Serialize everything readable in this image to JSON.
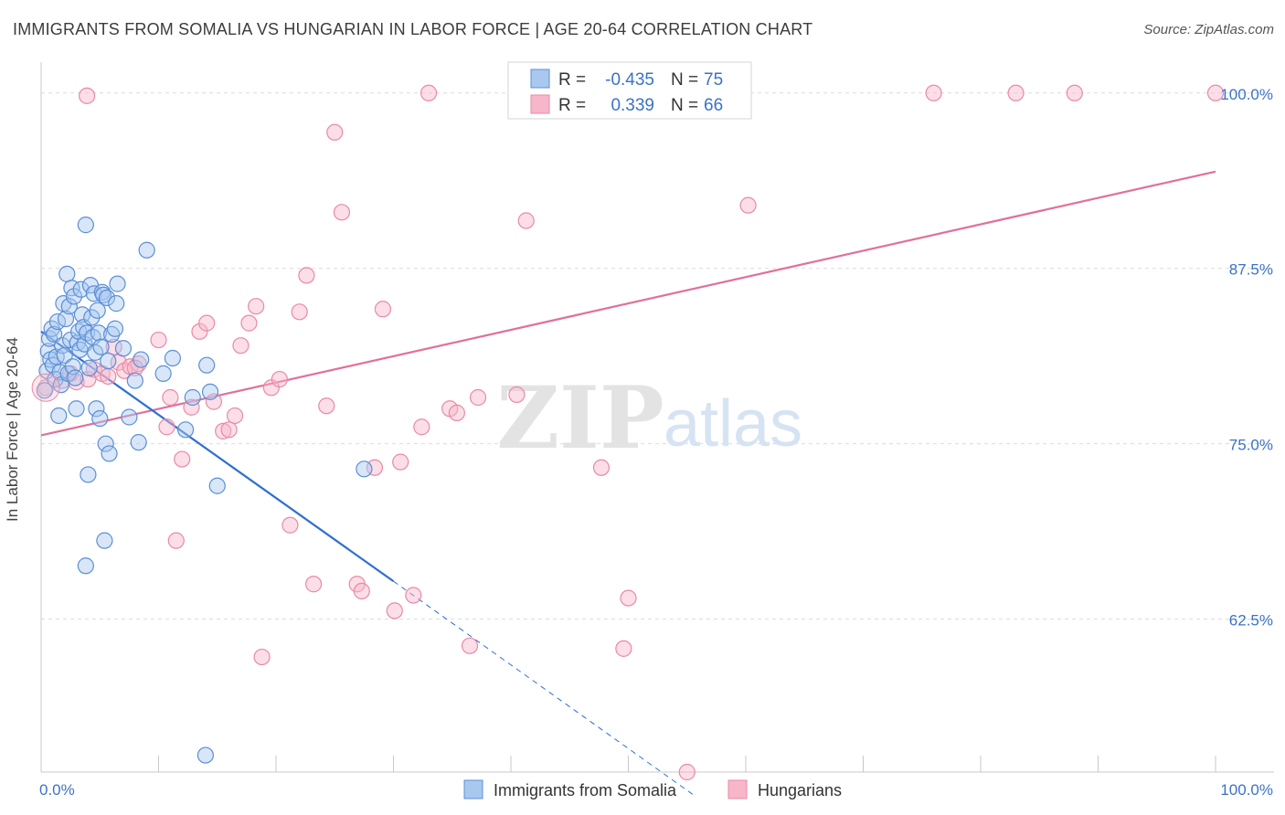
{
  "title": "IMMIGRANTS FROM SOMALIA VS HUNGARIAN IN LABOR FORCE | AGE 20-64 CORRELATION CHART",
  "source_prefix": "Source: ",
  "source_name": "ZipAtlas.com",
  "watermark": {
    "zip": "ZIP",
    "atlas": "atlas"
  },
  "colors": {
    "blue_fill": "#a8c8f0",
    "blue_stroke": "#5b8fd6",
    "blue_line": "#2e6fd0",
    "pink_fill": "#f7b6c9",
    "pink_stroke": "#e88aa6",
    "pink_line": "#e0709a",
    "tick_label": "#3a72c8",
    "grid": "#dcdcdc"
  },
  "legend_top": {
    "rows": [
      {
        "r_label": "R =",
        "r_value": "-0.435",
        "n_label": "N =",
        "n_value": "75"
      },
      {
        "r_label": "R =",
        "r_value": "0.339",
        "n_label": "N =",
        "n_value": "66"
      }
    ]
  },
  "legend_bottom": [
    "Immigrants from Somalia",
    "Hungarians"
  ],
  "chart_data": {
    "type": "scatter",
    "title": "IMMIGRANTS FROM SOMALIA VS HUNGARIAN IN LABOR FORCE | AGE 20-64 CORRELATION CHART",
    "xlabel": "",
    "ylabel": "In Labor Force | Age 20-64",
    "xlim": [
      0,
      100
    ],
    "ylim": [
      51.6,
      102.2
    ],
    "x_tick_labels": [
      "0.0%",
      "100.0%"
    ],
    "y_ticks": [
      62.5,
      75.0,
      87.5,
      100.0
    ],
    "y_tick_labels": [
      "62.5%",
      "75.0%",
      "87.5%",
      "100.0%"
    ],
    "grid": true,
    "series": [
      {
        "name": "Immigrants from Somalia",
        "r": -0.435,
        "n": 75,
        "trend": {
          "x0": 0,
          "y0": 83.0,
          "x1": 30,
          "y1": 65.2,
          "dash_x1": 55.5,
          "dash_y1": 50.0
        },
        "points": [
          [
            0.3,
            78.8
          ],
          [
            0.5,
            80.2
          ],
          [
            0.6,
            81.6
          ],
          [
            0.7,
            82.5
          ],
          [
            0.8,
            81.0
          ],
          [
            0.9,
            83.2
          ],
          [
            1.0,
            80.6
          ],
          [
            1.1,
            82.8
          ],
          [
            1.2,
            79.6
          ],
          [
            1.3,
            81.2
          ],
          [
            1.4,
            83.7
          ],
          [
            1.5,
            77.0
          ],
          [
            1.6,
            80.1
          ],
          [
            1.7,
            79.2
          ],
          [
            1.8,
            82.0
          ],
          [
            1.9,
            85.0
          ],
          [
            2.0,
            81.3
          ],
          [
            2.1,
            83.9
          ],
          [
            2.2,
            87.1
          ],
          [
            2.3,
            80.0
          ],
          [
            2.4,
            84.8
          ],
          [
            2.5,
            82.4
          ],
          [
            2.6,
            86.1
          ],
          [
            2.7,
            80.5
          ],
          [
            2.8,
            85.5
          ],
          [
            2.9,
            79.7
          ],
          [
            3.0,
            77.5
          ],
          [
            3.1,
            82.2
          ],
          [
            3.2,
            83.0
          ],
          [
            3.3,
            81.7
          ],
          [
            3.4,
            86.0
          ],
          [
            3.5,
            84.2
          ],
          [
            3.6,
            83.3
          ],
          [
            3.7,
            82.1
          ],
          [
            3.8,
            90.6
          ],
          [
            3.9,
            82.9
          ],
          [
            4.0,
            72.8
          ],
          [
            4.1,
            80.4
          ],
          [
            4.2,
            86.3
          ],
          [
            4.3,
            84.0
          ],
          [
            4.4,
            82.6
          ],
          [
            4.5,
            85.7
          ],
          [
            4.6,
            81.5
          ],
          [
            4.7,
            77.5
          ],
          [
            4.8,
            84.5
          ],
          [
            4.9,
            82.9
          ],
          [
            5.0,
            76.8
          ],
          [
            5.1,
            81.9
          ],
          [
            5.2,
            85.8
          ],
          [
            5.3,
            85.6
          ],
          [
            5.4,
            68.1
          ],
          [
            5.5,
            75.0
          ],
          [
            5.6,
            85.4
          ],
          [
            5.7,
            80.9
          ],
          [
            5.8,
            74.3
          ],
          [
            6.0,
            82.8
          ],
          [
            6.3,
            83.2
          ],
          [
            6.4,
            85.0
          ],
          [
            6.5,
            86.4
          ],
          [
            7.0,
            81.8
          ],
          [
            7.5,
            76.9
          ],
          [
            8.0,
            79.5
          ],
          [
            8.3,
            75.1
          ],
          [
            8.5,
            81.0
          ],
          [
            9.0,
            88.8
          ],
          [
            10.4,
            80.0
          ],
          [
            11.2,
            81.1
          ],
          [
            12.3,
            76.0
          ],
          [
            12.9,
            78.3
          ],
          [
            14.1,
            80.6
          ],
          [
            15.0,
            72.0
          ],
          [
            14.4,
            78.7
          ],
          [
            3.8,
            66.3
          ],
          [
            14.0,
            52.8
          ],
          [
            27.5,
            73.2
          ]
        ]
      },
      {
        "name": "Hungarians",
        "r": 0.339,
        "n": 66,
        "trend": {
          "x0": 0,
          "y0": 75.6,
          "x1": 100,
          "y1": 94.4
        },
        "points": [
          [
            0.4,
            79.0
          ],
          [
            1.8,
            79.5
          ],
          [
            2.5,
            80.0
          ],
          [
            3.0,
            79.4
          ],
          [
            4.0,
            79.6
          ],
          [
            4.5,
            80.3
          ],
          [
            5.2,
            80.0
          ],
          [
            5.7,
            79.8
          ],
          [
            6.2,
            81.9
          ],
          [
            6.6,
            80.8
          ],
          [
            7.1,
            80.2
          ],
          [
            7.6,
            80.5
          ],
          [
            8.3,
            80.7
          ],
          [
            10.0,
            82.4
          ],
          [
            10.7,
            76.2
          ],
          [
            11.0,
            78.3
          ],
          [
            11.5,
            68.1
          ],
          [
            12.0,
            73.9
          ],
          [
            12.8,
            77.6
          ],
          [
            13.5,
            83.0
          ],
          [
            14.1,
            83.6
          ],
          [
            14.7,
            78.0
          ],
          [
            15.5,
            75.9
          ],
          [
            16.0,
            76.0
          ],
          [
            16.5,
            77.0
          ],
          [
            17.0,
            82.0
          ],
          [
            17.7,
            83.6
          ],
          [
            18.3,
            84.8
          ],
          [
            18.8,
            59.8
          ],
          [
            19.6,
            79.0
          ],
          [
            20.3,
            79.6
          ],
          [
            21.2,
            69.2
          ],
          [
            22.0,
            84.4
          ],
          [
            22.6,
            87.0
          ],
          [
            23.2,
            65.0
          ],
          [
            24.3,
            77.7
          ],
          [
            25.0,
            97.2
          ],
          [
            25.6,
            91.5
          ],
          [
            26.9,
            65.0
          ],
          [
            27.3,
            64.5
          ],
          [
            28.4,
            73.3
          ],
          [
            29.1,
            84.6
          ],
          [
            30.1,
            63.1
          ],
          [
            30.6,
            73.7
          ],
          [
            31.7,
            64.2
          ],
          [
            32.4,
            76.2
          ],
          [
            33.0,
            100.0
          ],
          [
            34.8,
            77.5
          ],
          [
            35.4,
            77.2
          ],
          [
            36.5,
            60.6
          ],
          [
            37.2,
            78.3
          ],
          [
            40.5,
            78.5
          ],
          [
            41.3,
            90.9
          ],
          [
            42.4,
            100.0
          ],
          [
            44.1,
            100.0
          ],
          [
            47.7,
            73.3
          ],
          [
            49.6,
            60.4
          ],
          [
            50.0,
            64.0
          ],
          [
            60.2,
            92.0
          ],
          [
            76.0,
            100.0
          ],
          [
            83.0,
            100.0
          ],
          [
            88.0,
            100.0
          ],
          [
            100.0,
            100.0
          ],
          [
            3.9,
            99.8
          ],
          [
            55.0,
            51.6
          ],
          [
            8.0,
            80.4
          ]
        ]
      }
    ]
  }
}
